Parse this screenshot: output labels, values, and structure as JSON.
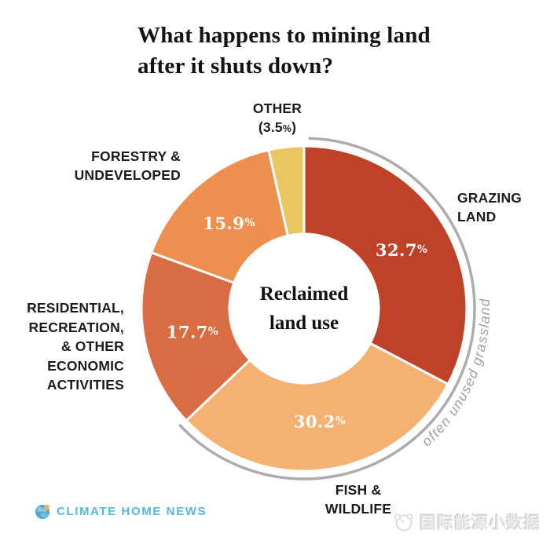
{
  "title": {
    "line1": "What happens to mining land",
    "line2": "after it shuts down?"
  },
  "center_label": {
    "line1": "Reclaimed",
    "line2": "land use"
  },
  "annotation": {
    "text": "often unused grassland",
    "color": "#9e9e9e"
  },
  "arc": {
    "color": "#acacac"
  },
  "percent_sign": "%",
  "chart_data": {
    "type": "pie",
    "donut": true,
    "title": "What happens to mining land after it shuts down?",
    "center_text": "Reclaimed land use",
    "unit": "%",
    "start_angle_deg": 0,
    "clockwise": true,
    "categories": [
      "Grazing land",
      "Fish & wildlife",
      "Residential, recreation, & other economic activities",
      "Forestry & undeveloped",
      "Other"
    ],
    "values": [
      32.7,
      30.2,
      17.7,
      15.9,
      3.5
    ],
    "annotation": "often unused grassland",
    "segments": [
      {
        "label": "Grazing land",
        "value": "32.7",
        "color": "#bf4127",
        "value_label_inside": true
      },
      {
        "label": "Fish & wildlife",
        "value": "30.2",
        "color": "#f4b172",
        "value_label_inside": true
      },
      {
        "label": "Residential, recreation, & other economic activities",
        "value": "17.7",
        "color": "#d96c42",
        "value_label_inside": true
      },
      {
        "label": "Forestry & undeveloped",
        "value": "15.9",
        "color": "#ee8f50",
        "value_label_inside": true
      },
      {
        "label": "Other",
        "value": "3.5",
        "color": "#e9c65f",
        "value_label_inside": false
      }
    ]
  },
  "labels": {
    "grazing": {
      "lines": [
        "GRAZING",
        "LAND"
      ]
    },
    "fish": {
      "lines": [
        "FISH &",
        "WILDLIFE"
      ]
    },
    "residential": {
      "lines": [
        "RESIDENTIAL,",
        "RECREATION,",
        "& OTHER",
        "ECONOMIC",
        "ACTIVITIES"
      ]
    },
    "forestry": {
      "lines": [
        "FORESTRY &",
        "UNDEVELOPED"
      ]
    },
    "other": {
      "name": "OTHER",
      "open": "(",
      "value": "3.5",
      "close": ")"
    }
  },
  "footer": {
    "logo_text": "CLIMATE HOME NEWS",
    "logo_color": "#56b7db",
    "watermark_text": "国际能源小数据"
  }
}
